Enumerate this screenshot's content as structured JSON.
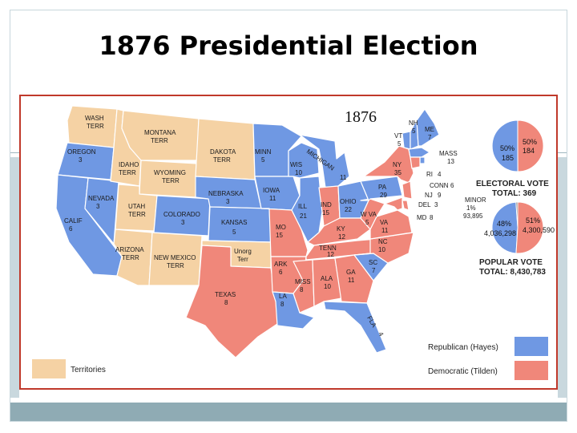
{
  "slide": {
    "title": "1876 Presidential Election"
  },
  "map": {
    "year": "1876",
    "colors": {
      "republican": "#6f98e3",
      "democratic": "#f0877a",
      "territory": "#f5d2a4",
      "unorganized": "#f5d2a4",
      "border": "#ffffff"
    },
    "states": {
      "wash": {
        "name": "WASH",
        "sub": "TERR"
      },
      "oregon": {
        "name": "OREGON",
        "votes": "3"
      },
      "calif": {
        "name": "CALIF",
        "votes": "6"
      },
      "nevada": {
        "name": "NEVADA",
        "votes": "3"
      },
      "idaho": {
        "name": "IDAHO",
        "sub": "TERR"
      },
      "montana": {
        "name": "MONTANA",
        "sub": "TERR"
      },
      "wyoming": {
        "name": "WYOMING",
        "sub": "TERR"
      },
      "utah": {
        "name": "UTAH",
        "sub": "TERR"
      },
      "arizona": {
        "name": "ARIZONA",
        "sub": "TERR"
      },
      "newmexico": {
        "name": "NEW MEXICO",
        "sub": "TERR"
      },
      "colorado": {
        "name": "COLORADO",
        "votes": "3"
      },
      "dakota": {
        "name": "DAKOTA",
        "sub": "TERR"
      },
      "nebraska": {
        "name": "NEBRASKA",
        "votes": "3"
      },
      "kansas": {
        "name": "KANSAS",
        "votes": "5"
      },
      "unorg": {
        "name": "Unorg",
        "sub": "Terr"
      },
      "texas": {
        "name": "TEXAS",
        "votes": "8"
      },
      "minn": {
        "name": "MINN",
        "votes": "5"
      },
      "iowa": {
        "name": "IOWA",
        "votes": "11"
      },
      "mo": {
        "name": "MO",
        "votes": "15"
      },
      "ark": {
        "name": "ARK",
        "votes": "6"
      },
      "la": {
        "name": "LA",
        "votes": "8"
      },
      "wis": {
        "name": "WIS",
        "votes": "10"
      },
      "ill": {
        "name": "ILL",
        "votes": "21"
      },
      "mich": {
        "name": "MICHIGAN",
        "votes": "11"
      },
      "ind": {
        "name": "IND",
        "votes": "15"
      },
      "ohio": {
        "name": "OHIO",
        "votes": "22"
      },
      "ky": {
        "name": "KY",
        "votes": "12"
      },
      "tenn": {
        "name": "TENN",
        "votes": "12"
      },
      "miss": {
        "name": "MISS",
        "votes": "8"
      },
      "ala": {
        "name": "ALA",
        "votes": "10"
      },
      "ga": {
        "name": "GA",
        "votes": "11"
      },
      "fla": {
        "name": "FLA",
        "votes": "4"
      },
      "sc": {
        "name": "SC",
        "votes": "7"
      },
      "nc": {
        "name": "NC",
        "votes": "10"
      },
      "va": {
        "name": "VA",
        "votes": "11"
      },
      "wva": {
        "name": "W VA",
        "votes": "5"
      },
      "pa": {
        "name": "PA",
        "votes": "29"
      },
      "ny": {
        "name": "NY",
        "votes": "35"
      },
      "vt": {
        "name": "VT",
        "votes": "5"
      },
      "nh": {
        "name": "NH",
        "votes": "5"
      },
      "me": {
        "name": "ME",
        "votes": "7"
      },
      "mass": {
        "name": "MASS",
        "votes": "13"
      },
      "ri": {
        "name": "RI",
        "votes": "4"
      },
      "conn": {
        "name": "CONN",
        "votes": "6"
      },
      "nj": {
        "name": "NJ",
        "votes": "9"
      },
      "del": {
        "name": "DEL",
        "votes": "3"
      },
      "md": {
        "name": "MD",
        "votes": "8"
      }
    }
  },
  "electoral_vote": {
    "republican_pct": "50%",
    "republican_votes": "185",
    "democratic_pct": "50%",
    "democratic_votes": "184",
    "republican_fraction": 0.501,
    "caption": "ELECTORAL VOTE",
    "total": "TOTAL: 369"
  },
  "popular_vote": {
    "republican_pct": "48%",
    "republican_votes": "4,036,298",
    "democratic_pct": "51%",
    "democratic_votes": "4,300,590",
    "minor_label": "MINOR",
    "minor_pct": "1%",
    "minor_votes": "93,895",
    "republican_fraction": 0.479,
    "minor_fraction": 0.011,
    "caption": "POPULAR VOTE",
    "total": "TOTAL: 8,430,783"
  },
  "legend": {
    "territories": "Territories",
    "republican": "Republican (Hayes)",
    "democratic": "Democratic (Tilden)"
  }
}
